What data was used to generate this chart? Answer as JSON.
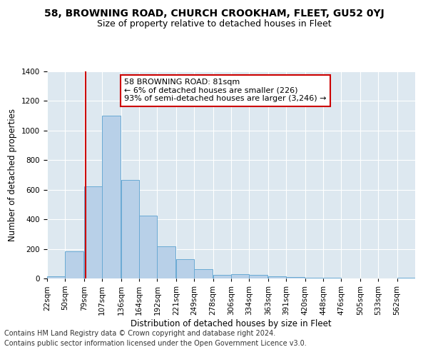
{
  "title": "58, BROWNING ROAD, CHURCH CROOKHAM, FLEET, GU52 0YJ",
  "subtitle": "Size of property relative to detached houses in Fleet",
  "xlabel": "Distribution of detached houses by size in Fleet",
  "ylabel": "Number of detached properties",
  "footer_line1": "Contains HM Land Registry data © Crown copyright and database right 2024.",
  "footer_line2": "Contains public sector information licensed under the Open Government Licence v3.0.",
  "annotation_line1": "58 BROWNING ROAD: 81sqm",
  "annotation_line2": "← 6% of detached houses are smaller (226)",
  "annotation_line3": "93% of semi-detached houses are larger (3,246) →",
  "property_size": 81,
  "bar_color": "#b8d0e8",
  "bar_edge_color": "#6aaad4",
  "vline_color": "#cc0000",
  "annotation_box_color": "#cc0000",
  "background_color": "#dde8f0",
  "bins": [
    22,
    50,
    79,
    107,
    136,
    164,
    192,
    221,
    249,
    278,
    306,
    334,
    363,
    391,
    420,
    448,
    476,
    505,
    533,
    562,
    590
  ],
  "counts": [
    15,
    185,
    625,
    1100,
    665,
    425,
    215,
    130,
    65,
    25,
    28,
    22,
    13,
    8,
    5,
    3,
    2,
    1,
    1,
    5
  ],
  "ylim": [
    0,
    1400
  ],
  "yticks": [
    0,
    200,
    400,
    600,
    800,
    1000,
    1200,
    1400
  ],
  "title_fontsize": 10,
  "subtitle_fontsize": 9,
  "xlabel_fontsize": 8.5,
  "ylabel_fontsize": 8.5,
  "tick_fontsize": 7.5,
  "annotation_fontsize": 8,
  "footer_fontsize": 7
}
